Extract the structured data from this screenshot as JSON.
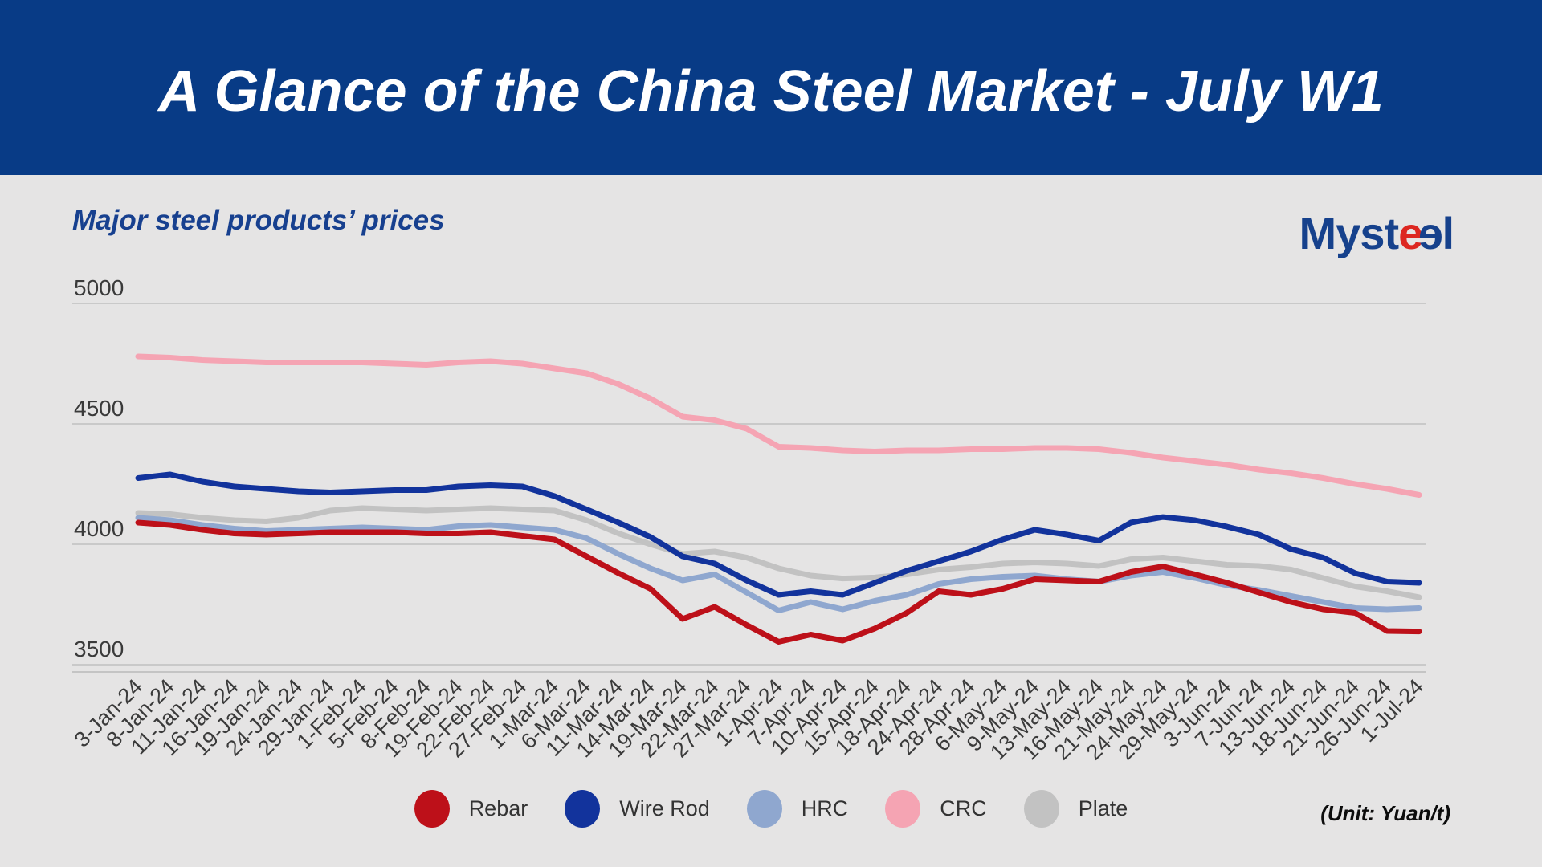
{
  "header": {
    "title": "A Glance of the China Steel Market - July W1"
  },
  "subtitle": "Major steel products’ prices",
  "logo": {
    "seg1": "Myst",
    "seg2": "e",
    "seg3": "e",
    "seg4": "l"
  },
  "footer": {
    "unit_label": "(Unit: Yuan/t)"
  },
  "chart_data": {
    "type": "line",
    "title": "Major steel products’ prices",
    "xlabel": "",
    "ylabel": "",
    "unit": "Yuan/t",
    "ylim": [
      3500,
      5000
    ],
    "yticks": [
      5000,
      4500,
      4000,
      3500
    ],
    "grid": true,
    "legend_position": "bottom",
    "x_tick_rotation": -45,
    "categories": [
      "3-Jan-24",
      "8-Jan-24",
      "11-Jan-24",
      "16-Jan-24",
      "19-Jan-24",
      "24-Jan-24",
      "29-Jan-24",
      "1-Feb-24",
      "5-Feb-24",
      "8-Feb-24",
      "19-Feb-24",
      "22-Feb-24",
      "27-Feb-24",
      "1-Mar-24",
      "6-Mar-24",
      "11-Mar-24",
      "14-Mar-24",
      "19-Mar-24",
      "22-Mar-24",
      "27-Mar-24",
      "1-Apr-24",
      "7-Apr-24",
      "10-Apr-24",
      "15-Apr-24",
      "18-Apr-24",
      "24-Apr-24",
      "28-Apr-24",
      "6-May-24",
      "9-May-24",
      "13-May-24",
      "16-May-24",
      "21-May-24",
      "24-May-24",
      "29-May-24",
      "3-Jun-24",
      "7-Jun-24",
      "13-Jun-24",
      "18-Jun-24",
      "21-Jun-24",
      "26-Jun-24",
      "1-Jul-24"
    ],
    "series": [
      {
        "name": "Rebar",
        "color": "#bd1019",
        "values": [
          4090,
          4080,
          4060,
          4045,
          4040,
          4045,
          4050,
          4050,
          4050,
          4045,
          4045,
          4050,
          4035,
          4020,
          3950,
          3880,
          3815,
          3690,
          3740,
          3665,
          3595,
          3625,
          3600,
          3650,
          3715,
          3805,
          3790,
          3815,
          3855,
          3850,
          3845,
          3885,
          3908,
          3875,
          3840,
          3800,
          3760,
          3730,
          3715,
          3640,
          3638
        ]
      },
      {
        "name": "Wire Rod",
        "color": "#12339c",
        "values": [
          4275,
          4290,
          4260,
          4240,
          4230,
          4220,
          4215,
          4220,
          4225,
          4225,
          4240,
          4245,
          4240,
          4200,
          4145,
          4090,
          4030,
          3950,
          3920,
          3850,
          3790,
          3805,
          3790,
          3840,
          3890,
          3930,
          3970,
          4020,
          4060,
          4040,
          4015,
          4090,
          4113,
          4100,
          4073,
          4040,
          3980,
          3945,
          3880,
          3845,
          3840
        ]
      },
      {
        "name": "HRC",
        "color": "#8fa7cf",
        "values": [
          4110,
          4100,
          4080,
          4065,
          4055,
          4060,
          4065,
          4070,
          4065,
          4060,
          4075,
          4080,
          4070,
          4060,
          4025,
          3960,
          3900,
          3850,
          3875,
          3800,
          3725,
          3760,
          3730,
          3765,
          3790,
          3835,
          3855,
          3865,
          3870,
          3855,
          3845,
          3870,
          3885,
          3860,
          3830,
          3810,
          3785,
          3760,
          3735,
          3730,
          3735
        ]
      },
      {
        "name": "CRC",
        "color": "#f5a4b3",
        "values": [
          4780,
          4775,
          4765,
          4760,
          4755,
          4755,
          4755,
          4755,
          4750,
          4745,
          4755,
          4760,
          4750,
          4730,
          4710,
          4665,
          4605,
          4530,
          4515,
          4480,
          4405,
          4400,
          4390,
          4385,
          4390,
          4390,
          4395,
          4395,
          4400,
          4400,
          4395,
          4380,
          4360,
          4345,
          4330,
          4310,
          4295,
          4275,
          4250,
          4230,
          4205
        ]
      },
      {
        "name": "Plate",
        "color": "#c2c2c2",
        "values": [
          4130,
          4125,
          4110,
          4100,
          4095,
          4110,
          4140,
          4150,
          4145,
          4140,
          4145,
          4150,
          4145,
          4140,
          4100,
          4045,
          4000,
          3960,
          3970,
          3945,
          3900,
          3870,
          3858,
          3862,
          3875,
          3895,
          3905,
          3920,
          3925,
          3920,
          3910,
          3938,
          3945,
          3930,
          3915,
          3910,
          3895,
          3860,
          3825,
          3805,
          3780
        ]
      }
    ],
    "style": {
      "background": "#e5e4e4",
      "banner_color": "#083b86",
      "gridline_color": "#c9c9c9",
      "axis_text_color": "#3a3a3a",
      "line_width": 7
    }
  }
}
